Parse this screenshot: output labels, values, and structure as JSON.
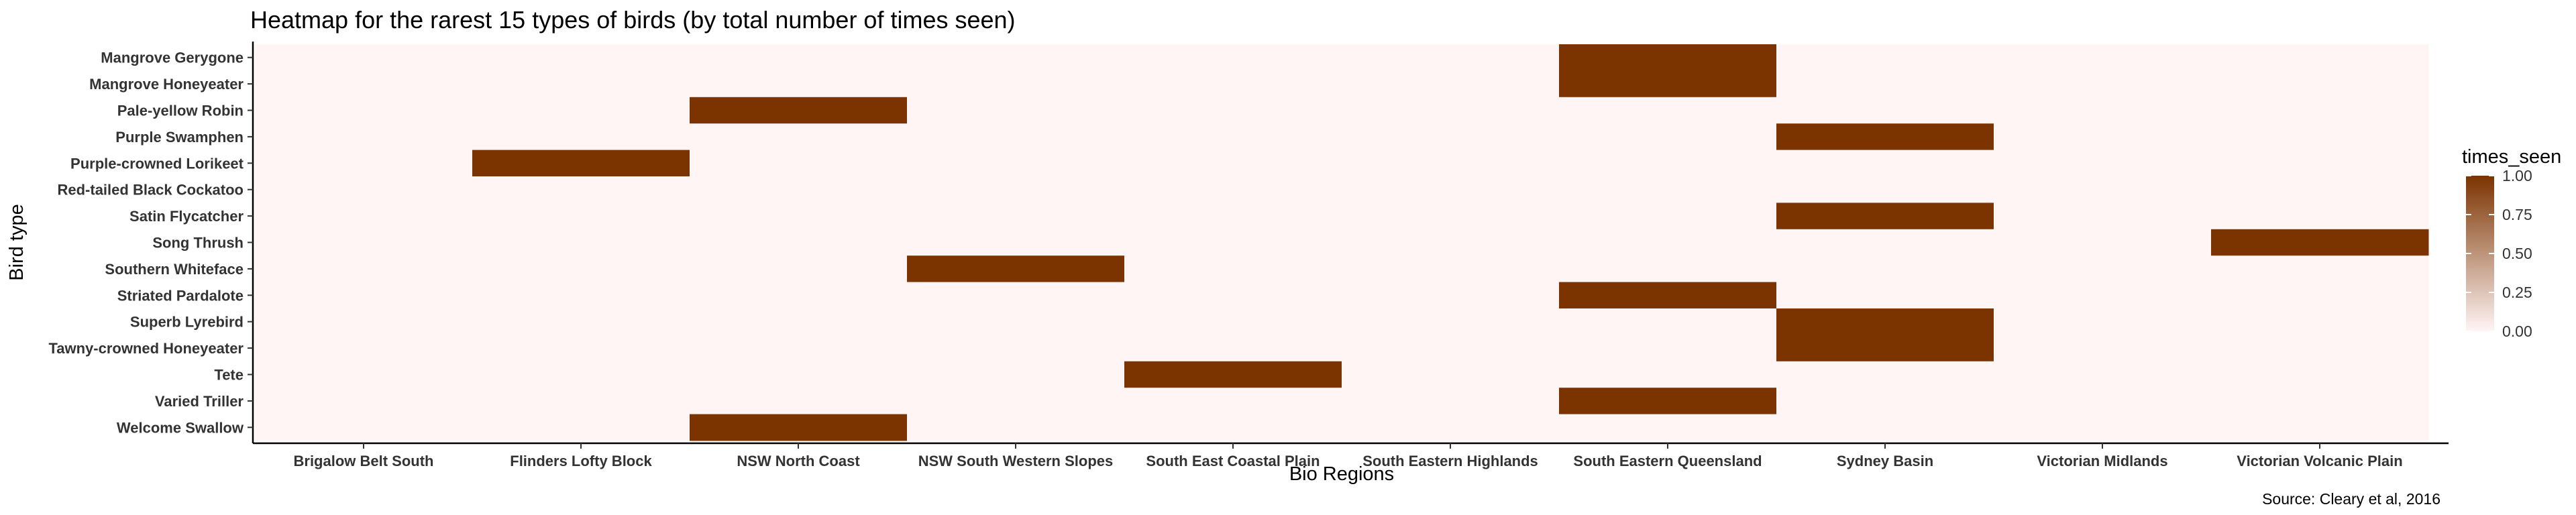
{
  "chart_data": {
    "type": "heatmap",
    "title": "Heatmap for the rarest 15 types of birds (by total number of times seen)",
    "xlabel": "Bio Regions",
    "ylabel": "Bird type",
    "caption": "Source: Cleary et al, 2016",
    "x_categories": [
      "Brigalow Belt South",
      "Flinders Lofty Block",
      "NSW North Coast",
      "NSW South Western Slopes",
      "South East Coastal Plain",
      "South Eastern Highlands",
      "South Eastern Queensland",
      "Sydney Basin",
      "Victorian Midlands",
      "Victorian Volcanic Plain"
    ],
    "y_categories": [
      "Mangrove Gerygone",
      "Mangrove Honeyeater",
      "Pale-yellow Robin",
      "Purple Swamphen",
      "Purple-crowned Lorikeet",
      "Red-tailed Black Cockatoo",
      "Satin Flycatcher",
      "Song Thrush",
      "Southern Whiteface",
      "Striated Pardalote",
      "Superb Lyrebird",
      "Tawny-crowned Honeyeater",
      "Tete",
      "Varied Triller",
      "Welcome Swallow"
    ],
    "values": [
      [
        0,
        0,
        0,
        0,
        0,
        0,
        1,
        0,
        0,
        0
      ],
      [
        0,
        0,
        0,
        0,
        0,
        0,
        1,
        0,
        0,
        0
      ],
      [
        0,
        0,
        1,
        0,
        0,
        0,
        0,
        0,
        0,
        0
      ],
      [
        0,
        0,
        0,
        0,
        0,
        0,
        0,
        1,
        0,
        0
      ],
      [
        0,
        1,
        0,
        0,
        0,
        0,
        0,
        0,
        0,
        0
      ],
      [
        0,
        0,
        0,
        0,
        0,
        0,
        0,
        0,
        0,
        0
      ],
      [
        0,
        0,
        0,
        0,
        0,
        0,
        0,
        1,
        0,
        0
      ],
      [
        0,
        0,
        0,
        0,
        0,
        0,
        0,
        0,
        0,
        1
      ],
      [
        0,
        0,
        0,
        1,
        0,
        0,
        0,
        0,
        0,
        0
      ],
      [
        0,
        0,
        0,
        0,
        0,
        0,
        1,
        0,
        0,
        0
      ],
      [
        0,
        0,
        0,
        0,
        0,
        0,
        0,
        1,
        0,
        0
      ],
      [
        0,
        0,
        0,
        0,
        0,
        0,
        0,
        1,
        0,
        0
      ],
      [
        0,
        0,
        0,
        0,
        1,
        0,
        0,
        0,
        0,
        0
      ],
      [
        0,
        0,
        0,
        0,
        0,
        0,
        1,
        0,
        0,
        0
      ],
      [
        0,
        0,
        1,
        0,
        0,
        0,
        0,
        0,
        0,
        0
      ]
    ],
    "legend": {
      "title": "times_seen",
      "position": "right",
      "range": [
        0,
        1
      ],
      "ticks": [
        "1.00",
        "0.75",
        "0.50",
        "0.25",
        "0.00"
      ],
      "low_color": "#fff5f5",
      "high_color": "#7b3300"
    },
    "grid": false
  }
}
